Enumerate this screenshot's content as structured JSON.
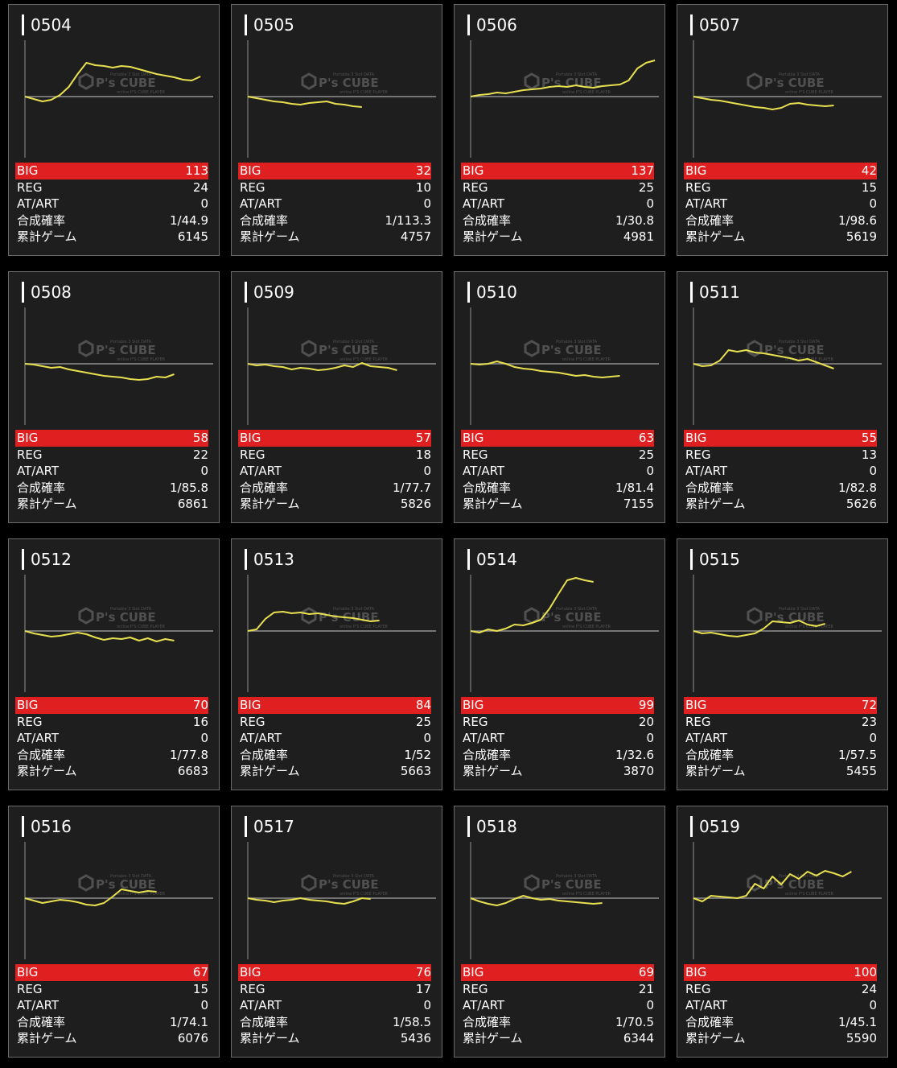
{
  "labels": {
    "big": "BIG",
    "reg": "REG",
    "atart": "AT/ART",
    "rate": "合成確率",
    "games": "累計ゲーム"
  },
  "watermark": {
    "text": "P's CUBE",
    "sub": "Portable 3 Slot DATA",
    "sub2": "online P'S CUBE PLAYER"
  },
  "colors": {
    "line": "#e8e050",
    "big_bar": "#e02020",
    "card_bg": "#1e1e1e",
    "axis": "#909090"
  },
  "chart_data": [
    {
      "type": "line",
      "title": "0504",
      "big": "113",
      "reg": "24",
      "atart": "0",
      "rate": "1/44.9",
      "games": "6145",
      "y": [
        0,
        -300,
        -600,
        -400,
        200,
        1200,
        2800,
        4200,
        3900,
        3800,
        3600,
        3800,
        3700,
        3400,
        3100,
        2800,
        2600,
        2400,
        2100,
        2000,
        2500
      ]
    },
    {
      "type": "line",
      "title": "0505",
      "big": "32",
      "reg": "10",
      "atart": "0",
      "rate": "1/113.3",
      "games": "4757",
      "y": [
        0,
        -200,
        -400,
        -600,
        -700,
        -900,
        -1000,
        -800,
        -700,
        -600,
        -900,
        -1000,
        -1200,
        -1300
      ]
    },
    {
      "type": "line",
      "title": "0506",
      "big": "137",
      "reg": "25",
      "atart": "0",
      "rate": "1/30.8",
      "games": "4981",
      "y": [
        0,
        200,
        300,
        500,
        400,
        600,
        800,
        900,
        1000,
        1200,
        1300,
        1200,
        1400,
        1200,
        1100,
        1300,
        1400,
        1500,
        2000,
        3500,
        4200,
        4500
      ]
    },
    {
      "type": "line",
      "title": "0507",
      "big": "42",
      "reg": "15",
      "atart": "0",
      "rate": "1/98.6",
      "games": "5619",
      "y": [
        0,
        -200,
        -400,
        -500,
        -700,
        -900,
        -1100,
        -1300,
        -1400,
        -1600,
        -1400,
        -900,
        -800,
        -1000,
        -1100,
        -1200,
        -1100
      ]
    },
    {
      "type": "line",
      "title": "0508",
      "big": "58",
      "reg": "22",
      "atart": "0",
      "rate": "1/85.8",
      "games": "6861",
      "y": [
        0,
        -100,
        -300,
        -500,
        -400,
        -700,
        -900,
        -1100,
        -1300,
        -1500,
        -1600,
        -1700,
        -1900,
        -2000,
        -1900,
        -1600,
        -1700,
        -1300
      ]
    },
    {
      "type": "line",
      "title": "0509",
      "big": "57",
      "reg": "18",
      "atart": "0",
      "rate": "1/77.7",
      "games": "5826",
      "y": [
        0,
        -200,
        -100,
        -300,
        -400,
        -700,
        -500,
        -600,
        -800,
        -700,
        -500,
        -200,
        -400,
        100,
        -300,
        -400,
        -500,
        -800
      ]
    },
    {
      "type": "line",
      "title": "0510",
      "big": "63",
      "reg": "25",
      "atart": "0",
      "rate": "1/81.4",
      "games": "7155",
      "y": [
        0,
        -100,
        0,
        300,
        0,
        -400,
        -600,
        -700,
        -900,
        -1000,
        -1100,
        -1300,
        -1500,
        -1400,
        -1600,
        -1700,
        -1600,
        -1500
      ]
    },
    {
      "type": "line",
      "title": "0511",
      "big": "55",
      "reg": "13",
      "atart": "0",
      "rate": "1/82.8",
      "games": "5626",
      "y": [
        0,
        -300,
        -200,
        400,
        1700,
        1500,
        1700,
        1400,
        1300,
        1100,
        900,
        700,
        400,
        600,
        200,
        -200,
        -600
      ]
    },
    {
      "type": "line",
      "title": "0512",
      "big": "70",
      "reg": "16",
      "atart": "0",
      "rate": "1/77.8",
      "games": "6683",
      "y": [
        0,
        -300,
        -500,
        -700,
        -600,
        -400,
        -200,
        -400,
        -800,
        -1100,
        -900,
        -1000,
        -800,
        -1200,
        -900,
        -1300,
        -1000,
        -1200
      ]
    },
    {
      "type": "line",
      "title": "0513",
      "big": "84",
      "reg": "25",
      "atart": "0",
      "rate": "1/52",
      "games": "5663",
      "y": [
        0,
        200,
        1500,
        2300,
        2400,
        2200,
        2300,
        2100,
        2200,
        2000,
        1800,
        1700,
        1600,
        1400,
        1200,
        1300
      ]
    },
    {
      "type": "line",
      "title": "0514",
      "big": "99",
      "reg": "20",
      "atart": "0",
      "rate": "1/32.6",
      "games": "3870",
      "y": [
        0,
        -200,
        200,
        0,
        300,
        800,
        700,
        1000,
        1400,
        2800,
        4600,
        6300,
        6600,
        6300,
        6100
      ]
    },
    {
      "type": "line",
      "title": "0515",
      "big": "72",
      "reg": "23",
      "atart": "0",
      "rate": "1/57.5",
      "games": "5455",
      "y": [
        0,
        -300,
        -200,
        -400,
        -600,
        -700,
        -500,
        -300,
        300,
        1200,
        1100,
        1000,
        1300,
        800,
        600,
        900
      ]
    },
    {
      "type": "line",
      "title": "0516",
      "big": "67",
      "reg": "15",
      "atart": "0",
      "rate": "1/74.1",
      "games": "6076",
      "y": [
        0,
        -300,
        -600,
        -400,
        -200,
        -300,
        -500,
        -800,
        -900,
        -600,
        200,
        1100,
        900,
        700,
        900,
        800
      ]
    },
    {
      "type": "line",
      "title": "0517",
      "big": "76",
      "reg": "17",
      "atart": "0",
      "rate": "1/58.5",
      "games": "5436",
      "y": [
        0,
        -200,
        -300,
        -500,
        -300,
        -200,
        0,
        -200,
        -300,
        -400,
        -600,
        -700,
        -400,
        0,
        -100
      ]
    },
    {
      "type": "line",
      "title": "0518",
      "big": "69",
      "reg": "21",
      "atart": "0",
      "rate": "1/70.5",
      "games": "6344",
      "y": [
        0,
        -400,
        -700,
        -900,
        -600,
        -100,
        300,
        0,
        -200,
        -100,
        -300,
        -400,
        -500,
        -600,
        -700,
        -600
      ]
    },
    {
      "type": "line",
      "title": "0519",
      "big": "100",
      "reg": "24",
      "atart": "0",
      "rate": "1/45.1",
      "games": "5590",
      "y": [
        0,
        -400,
        300,
        200,
        100,
        0,
        300,
        1800,
        1200,
        2700,
        1700,
        3000,
        2400,
        3300,
        2800,
        3400,
        3100,
        2700,
        3300
      ]
    }
  ]
}
